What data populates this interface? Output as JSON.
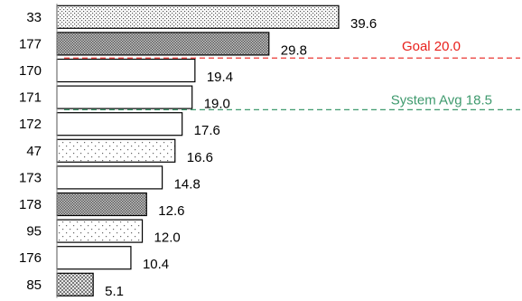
{
  "chart_data": {
    "type": "bar",
    "orientation": "horizontal",
    "categories": [
      "33",
      "177",
      "170",
      "171",
      "172",
      "47",
      "173",
      "178",
      "95",
      "176",
      "85"
    ],
    "values": [
      39.6,
      29.8,
      19.4,
      19.0,
      17.6,
      16.6,
      14.8,
      12.6,
      12.0,
      10.4,
      5.1
    ],
    "value_labels": [
      "39.6",
      "29.8",
      "19.4",
      "19.0",
      "17.6",
      "16.6",
      "14.8",
      "12.6",
      "12.0",
      "10.4",
      "5.1"
    ],
    "patterns": [
      "sparse-dots",
      "dense-dots",
      "none",
      "none",
      "none",
      "scattered-dots",
      "none",
      "dense-dots",
      "scattered-dots",
      "none",
      "checker-dots"
    ],
    "xlim": [
      0,
      44
    ],
    "grid": false,
    "reference_lines": [
      {
        "label": "Goal 20.0",
        "value": 20.0,
        "color": "#e8201c",
        "style": "dashed"
      },
      {
        "label": "System Avg 18.5",
        "value": 18.5,
        "color": "#3f9a6e",
        "style": "dashed"
      }
    ]
  }
}
